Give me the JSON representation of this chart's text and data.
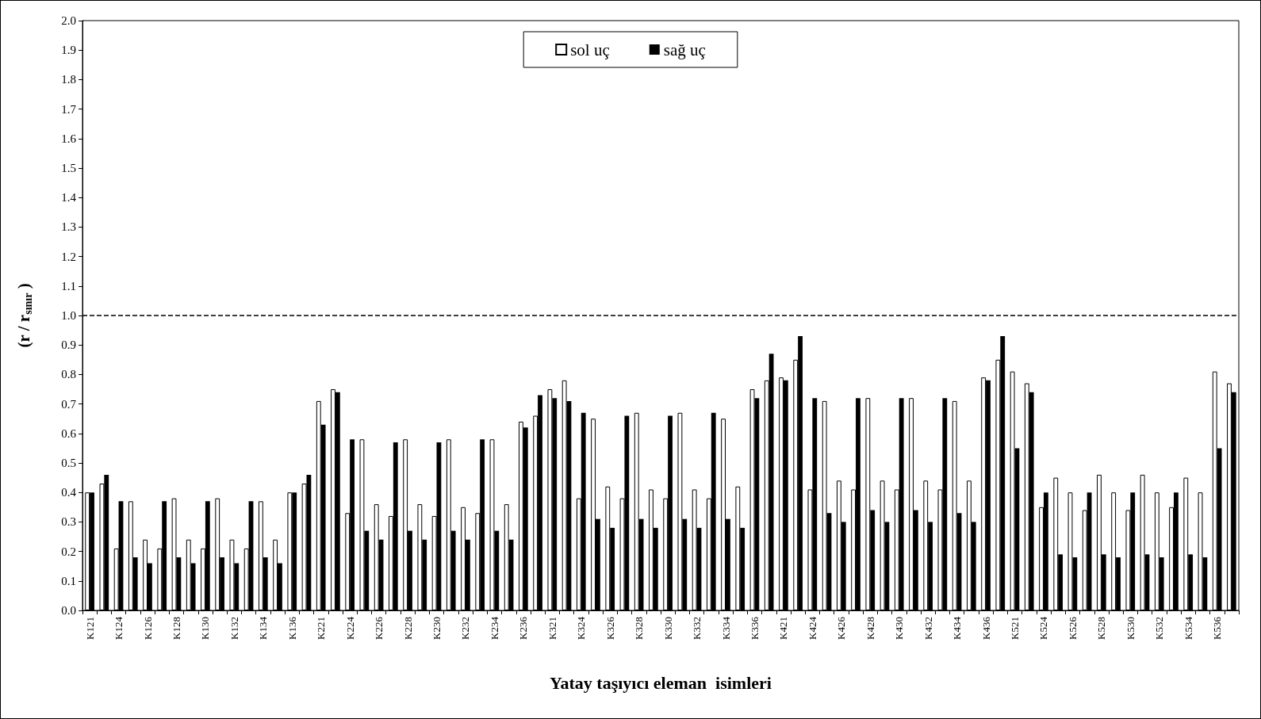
{
  "chart_data": {
    "type": "bar",
    "xlabel": "Yatay taşıyıcı eleman  isimleri",
    "ylabel": "(r / r$_{sınır}$ )",
    "categories": [
      "K121",
      null,
      "K124",
      null,
      "K126",
      null,
      "K128",
      null,
      "K130",
      null,
      "K132",
      null,
      "K134",
      null,
      "K136",
      null,
      "K221",
      null,
      "K224",
      null,
      "K226",
      null,
      "K228",
      null,
      "K230",
      null,
      "K232",
      null,
      "K234",
      null,
      "K236",
      null,
      "K321",
      null,
      "K324",
      null,
      "K326",
      null,
      "K328",
      null,
      "K330",
      null,
      "K332",
      null,
      "K334",
      null,
      "K336",
      null,
      "K421",
      null,
      "K424",
      null,
      "K426",
      null,
      "K428",
      null,
      "K430",
      null,
      "K432",
      null,
      "K434",
      null,
      "K436",
      null,
      "K521",
      null,
      "K524",
      null,
      "K526",
      null,
      "K528",
      null,
      "K530",
      null,
      "K532",
      null,
      "K534",
      null,
      "K536",
      null
    ],
    "series": [
      {
        "name": "sol uç",
        "color": "#ffffff",
        "values": [
          0.4,
          0.43,
          0.21,
          0.37,
          0.24,
          0.21,
          0.38,
          0.24,
          0.21,
          0.38,
          0.24,
          0.21,
          0.37,
          0.24,
          0.4,
          0.43,
          0.71,
          0.75,
          0.33,
          0.58,
          0.36,
          0.32,
          0.58,
          0.36,
          0.32,
          0.58,
          0.35,
          0.33,
          0.58,
          0.36,
          0.64,
          0.66,
          0.75,
          0.78,
          0.38,
          0.65,
          0.42,
          0.38,
          0.67,
          0.41,
          0.38,
          0.67,
          0.41,
          0.38,
          0.65,
          0.42,
          0.75,
          0.78,
          0.79,
          0.85,
          0.41,
          0.71,
          0.44,
          0.41,
          0.72,
          0.44,
          0.41,
          0.72,
          0.44,
          0.41,
          0.71,
          0.44,
          0.79,
          0.85,
          0.81,
          0.77,
          0.35,
          0.45,
          0.4,
          0.34,
          0.46,
          0.4,
          0.34,
          0.46,
          0.4,
          0.35,
          0.45,
          0.4,
          0.81,
          0.77
        ]
      },
      {
        "name": "sağ uç",
        "color": "#000000",
        "values": [
          0.4,
          0.46,
          0.37,
          0.18,
          0.16,
          0.37,
          0.18,
          0.16,
          0.37,
          0.18,
          0.16,
          0.37,
          0.18,
          0.16,
          0.4,
          0.46,
          0.63,
          0.74,
          0.58,
          0.27,
          0.24,
          0.57,
          0.27,
          0.24,
          0.57,
          0.27,
          0.24,
          0.58,
          0.27,
          0.24,
          0.62,
          0.73,
          0.72,
          0.71,
          0.67,
          0.31,
          0.28,
          0.66,
          0.31,
          0.28,
          0.66,
          0.31,
          0.28,
          0.67,
          0.31,
          0.28,
          0.72,
          0.87,
          0.78,
          0.93,
          0.72,
          0.33,
          0.3,
          0.72,
          0.34,
          0.3,
          0.72,
          0.34,
          0.3,
          0.72,
          0.33,
          0.3,
          0.78,
          0.93,
          0.55,
          0.74,
          0.4,
          0.19,
          0.18,
          0.4,
          0.19,
          0.18,
          0.4,
          0.19,
          0.18,
          0.4,
          0.19,
          0.18,
          0.55,
          0.74
        ]
      }
    ],
    "ylim": [
      0,
      2
    ],
    "yticks": [
      {
        "value": 0,
        "label": "0.0"
      },
      {
        "value": 0.1,
        "label": "0.1"
      },
      {
        "value": 0.2,
        "label": "0.2"
      },
      {
        "value": 0.3,
        "label": "0.3"
      },
      {
        "value": 0.4,
        "label": "0.4"
      },
      {
        "value": 0.5,
        "label": "0.5"
      },
      {
        "value": 0.6,
        "label": "0.6"
      },
      {
        "value": 0.7,
        "label": "0.7"
      },
      {
        "value": 0.8,
        "label": "0.8"
      },
      {
        "value": 0.9,
        "label": "0.9"
      },
      {
        "value": 1,
        "label": "1.0"
      },
      {
        "value": 1.1,
        "label": "1.1"
      },
      {
        "value": 1.2,
        "label": "1.2"
      },
      {
        "value": 1.3,
        "label": "1.3"
      },
      {
        "value": 1.4,
        "label": "1.4"
      },
      {
        "value": 1.5,
        "label": "1.5"
      },
      {
        "value": 1.6,
        "label": "1.6"
      },
      {
        "value": 1.7,
        "label": "1.7"
      },
      {
        "value": 1.8,
        "label": "1.8"
      },
      {
        "value": 1.9,
        "label": "1.9"
      },
      {
        "value": 2,
        "label": "2.0"
      }
    ],
    "ref_lines": [
      {
        "axis": "y",
        "value": 1,
        "color": "#000000",
        "line_style": "dashed"
      }
    ],
    "grid": false,
    "legend": "top"
  }
}
